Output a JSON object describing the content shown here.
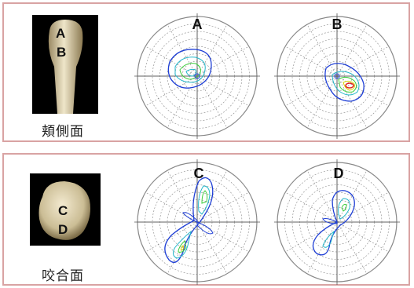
{
  "panels": {
    "top": {
      "view_label": "頬側面",
      "photo_letters": [
        "A",
        "B"
      ],
      "plot_labels": [
        "A",
        "B"
      ]
    },
    "bottom": {
      "view_label": "咬合面",
      "photo_letters": [
        "C",
        "D"
      ],
      "plot_labels": [
        "C",
        "D"
      ]
    }
  },
  "colors": {
    "panel_border": "#d9a3a3",
    "grid": "#888888",
    "contour_outer": "#1f3fd6",
    "contour_mid": "#23b6c9",
    "contour_green": "#3fcf3f",
    "contour_yellow": "#d9d400",
    "contour_red": "#e02020"
  }
}
